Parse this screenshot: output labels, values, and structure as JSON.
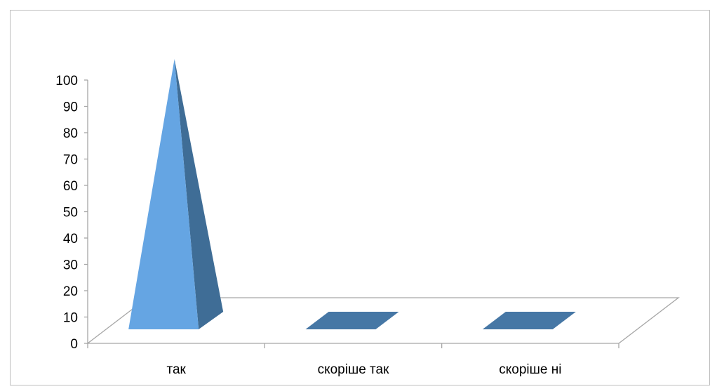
{
  "chart_data": {
    "type": "bar",
    "style": "3d-pyramid",
    "categories": [
      "так",
      "скоріше так",
      "скоріше ні"
    ],
    "values": [
      100,
      0,
      0
    ],
    "ylim": [
      0,
      100
    ],
    "yticks": [
      "0",
      "10",
      "20",
      "30",
      "40",
      "50",
      "60",
      "70",
      "80",
      "90",
      "100"
    ],
    "title": "",
    "xlabel": "",
    "ylabel": "",
    "grid": false,
    "legend": "none",
    "colors": {
      "front": "#65a5e3",
      "side": "#3f6d96",
      "flat": "#4677a5",
      "floor_line": "#a6a6a6",
      "axis_line": "#a6a6a6"
    }
  }
}
